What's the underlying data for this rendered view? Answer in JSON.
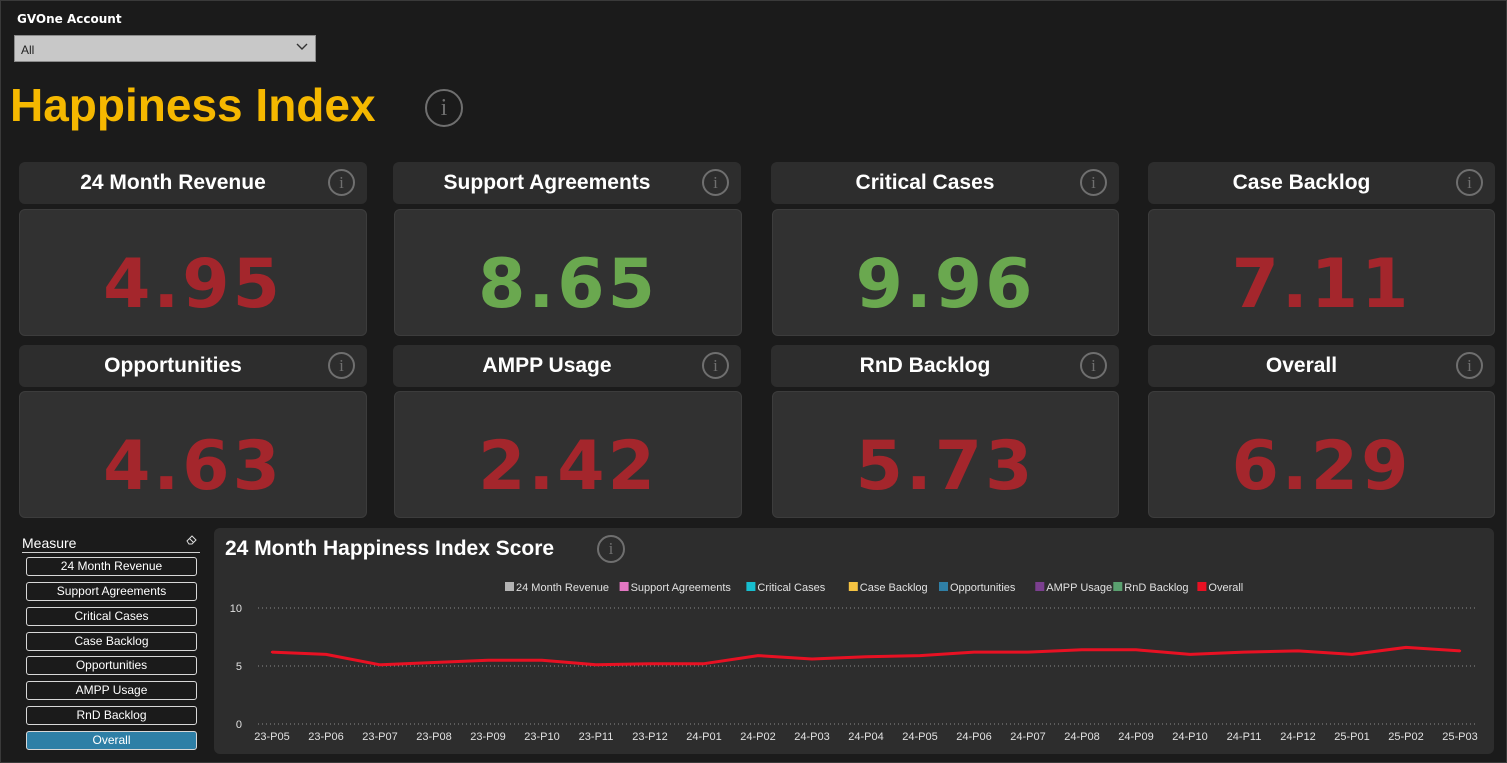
{
  "account": {
    "label": "GVOne Account",
    "selected": "All"
  },
  "title": "Happiness Index",
  "info_glyph": "i",
  "cards": [
    {
      "name": "24 Month Revenue",
      "value": "4.95",
      "color": "#a4262c"
    },
    {
      "name": "Support Agreements",
      "value": "8.65",
      "color": "#6aa84f"
    },
    {
      "name": "Critical Cases",
      "value": "9.96",
      "color": "#6aa84f"
    },
    {
      "name": "Case Backlog",
      "value": "7.11",
      "color": "#a4262c"
    },
    {
      "name": "Opportunities",
      "value": "4.63",
      "color": "#a4262c"
    },
    {
      "name": "AMPP Usage",
      "value": "2.42",
      "color": "#a4262c"
    },
    {
      "name": "RnD Backlog",
      "value": "5.73",
      "color": "#a4262c"
    },
    {
      "name": "Overall",
      "value": "6.29",
      "color": "#a4262c"
    }
  ],
  "slicer": {
    "title": "Measure",
    "items": [
      "24 Month Revenue",
      "Support Agreements",
      "Critical Cases",
      "Case Backlog",
      "Opportunities",
      "AMPP Usage",
      "RnD Backlog",
      "Overall"
    ],
    "selected": "Overall"
  },
  "chart_data": {
    "type": "line",
    "title": "24 Month Happiness Index Score",
    "legend": [
      {
        "name": "24 Month Revenue",
        "color": "#b3b3b3"
      },
      {
        "name": "Support Agreements",
        "color": "#e377c2"
      },
      {
        "name": "Critical Cases",
        "color": "#17becf"
      },
      {
        "name": "Case Backlog",
        "color": "#f5c342"
      },
      {
        "name": "Opportunities",
        "color": "#2f7fa6"
      },
      {
        "name": "AMPP Usage",
        "color": "#7b3f8f"
      },
      {
        "name": "RnD Backlog",
        "color": "#5aa06f"
      },
      {
        "name": "Overall",
        "color": "#e81123"
      }
    ],
    "legend_position": "top-center",
    "x": [
      "23-P05",
      "23-P06",
      "23-P07",
      "23-P08",
      "23-P09",
      "23-P10",
      "23-P11",
      "23-P12",
      "24-P01",
      "24-P02",
      "24-P03",
      "24-P04",
      "24-P05",
      "24-P06",
      "24-P07",
      "24-P08",
      "24-P09",
      "24-P10",
      "24-P11",
      "24-P12",
      "25-P01",
      "25-P02",
      "25-P03"
    ],
    "series": [
      {
        "name": "Overall",
        "color": "#e81123",
        "values": [
          6.2,
          6.0,
          5.1,
          5.3,
          5.5,
          5.5,
          5.1,
          5.2,
          5.2,
          5.9,
          5.6,
          5.8,
          5.9,
          6.2,
          6.2,
          6.4,
          6.4,
          6.0,
          6.2,
          6.3,
          6.0,
          6.6,
          6.3
        ]
      }
    ],
    "yticks": [
      0,
      5,
      10
    ],
    "ylim": [
      0,
      10
    ],
    "grid": true
  }
}
